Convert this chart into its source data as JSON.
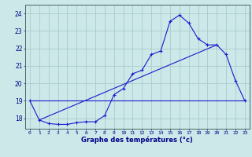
{
  "background_color": "#cce8e8",
  "grid_color": "#aacccc",
  "line_color": "#1a1acc",
  "xlim": [
    -0.5,
    23.5
  ],
  "ylim": [
    17.4,
    24.5
  ],
  "yticks": [
    18,
    19,
    20,
    21,
    22,
    23,
    24
  ],
  "xticks": [
    0,
    1,
    2,
    3,
    4,
    5,
    6,
    7,
    8,
    9,
    10,
    11,
    12,
    13,
    14,
    15,
    16,
    17,
    18,
    19,
    20,
    21,
    22,
    23
  ],
  "xlabel": "Graphe des températures (°c)",
  "line1_x": [
    0,
    1,
    2,
    3,
    4,
    5,
    6,
    7,
    8,
    9,
    10,
    11,
    12,
    13,
    14,
    15,
    16,
    17,
    18,
    19,
    20,
    21,
    22,
    23
  ],
  "line1_y": [
    19.0,
    17.9,
    17.7,
    17.65,
    17.65,
    17.75,
    17.8,
    17.8,
    18.15,
    19.35,
    19.7,
    20.55,
    20.75,
    21.65,
    21.85,
    23.55,
    23.9,
    23.45,
    22.55,
    22.2,
    22.2,
    21.65,
    20.15,
    19.0
  ],
  "line2_x": [
    1,
    20
  ],
  "line2_y": [
    17.9,
    22.2
  ],
  "line3_x": [
    0,
    23
  ],
  "line3_y": [
    19.0,
    19.0
  ]
}
